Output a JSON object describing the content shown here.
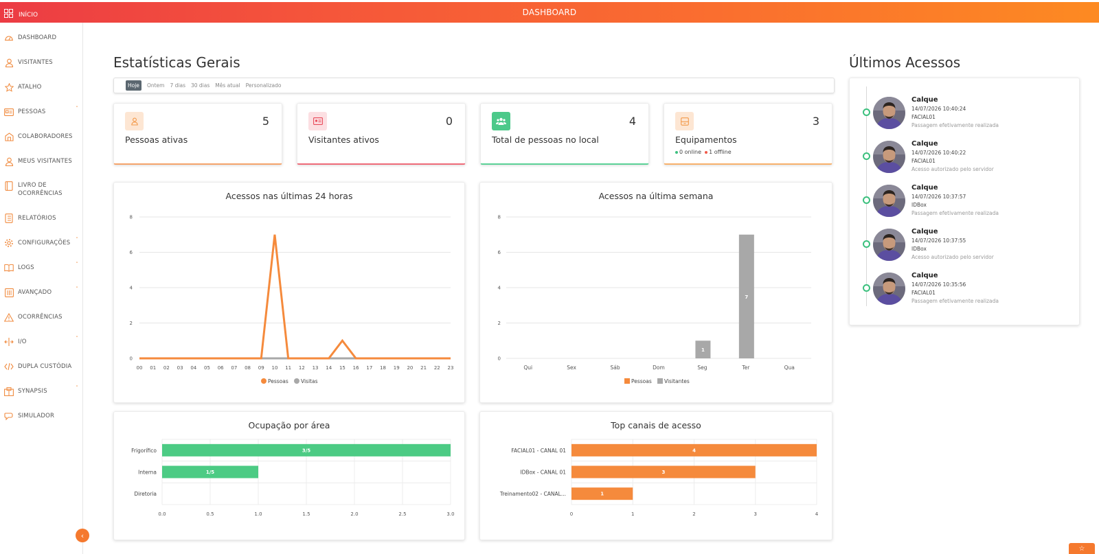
{
  "topbar": {
    "home_label": "INÍCIO",
    "title": "DASHBOARD"
  },
  "sidebar": {
    "items": [
      {
        "label": "DASHBOARD",
        "icon": "cloud-icon",
        "caret": false
      },
      {
        "label": "VISITANTES",
        "icon": "user-icon",
        "caret": false
      },
      {
        "label": "ATALHO",
        "icon": "star-icon",
        "caret": false
      },
      {
        "label": "PESSOAS",
        "icon": "id-card-icon",
        "caret": true
      },
      {
        "label": "COLABORADORES",
        "icon": "building-icon",
        "caret": false
      },
      {
        "label": "MEUS VISITANTES",
        "icon": "user-icon",
        "caret": false
      },
      {
        "label": "LIVRO DE OCORRÊNCIAS",
        "icon": "book-icon",
        "caret": false
      },
      {
        "label": "RELATÓRIOS",
        "icon": "report-icon",
        "caret": false
      },
      {
        "label": "CONFIGURAÇÕES",
        "icon": "gear-icon",
        "caret": true
      },
      {
        "label": "LOGS",
        "icon": "open-book-icon",
        "caret": true
      },
      {
        "label": "AVANÇADO",
        "icon": "advanced-icon",
        "caret": true
      },
      {
        "label": "OCORRÊNCIAS",
        "icon": "warning-icon",
        "caret": false
      },
      {
        "label": "I/O",
        "icon": "io-icon",
        "caret": true
      },
      {
        "label": "DUPLA CUSTÓDIA",
        "icon": "code-icon",
        "caret": false
      },
      {
        "label": "SYNAPSIS",
        "icon": "synapsis-icon",
        "caret": true
      },
      {
        "label": "SIMULADOR",
        "icon": "simulator-icon",
        "caret": false
      }
    ],
    "collapse_label": "‹"
  },
  "main": {
    "title": "Estatísticas Gerais",
    "filters": [
      "Hoje",
      "Ontem",
      "7 dias",
      "30 dias",
      "Mês atual",
      "Personalizado"
    ],
    "active_filter": "Hoje",
    "stats": [
      {
        "label": "Pessoas ativas",
        "value": "5",
        "icon": "person-icon",
        "color": "#f39a4b",
        "bg": "#fde6d3"
      },
      {
        "label": "Visitantes ativos",
        "value": "0",
        "icon": "badge-icon",
        "color": "#e84a5a",
        "bg": "#fcdfe2"
      },
      {
        "label": "Total de pessoas no local",
        "value": "4",
        "icon": "group-icon",
        "color": "#ffffff",
        "bg": "#4cc98a"
      },
      {
        "label": "Equipamentos",
        "value": "3",
        "icon": "device-icon",
        "color": "#f39a4b",
        "bg": "#fde6d3",
        "online": "0 online",
        "offline": "1 offline"
      }
    ]
  },
  "colors": {
    "orange": "#f58a3c",
    "green": "#4ccb84",
    "gray": "#a8a8a8",
    "online": "#3cc07e",
    "offline": "#f05a4a"
  },
  "chart_data": [
    {
      "type": "line",
      "title": "Acessos nas últimas 24 horas",
      "x": [
        "00",
        "01",
        "02",
        "03",
        "04",
        "05",
        "06",
        "07",
        "08",
        "09",
        "10",
        "11",
        "12",
        "13",
        "14",
        "15",
        "16",
        "17",
        "18",
        "19",
        "20",
        "21",
        "22",
        "23"
      ],
      "series": [
        {
          "name": "Pessoas",
          "values": [
            0,
            0,
            0,
            0,
            0,
            0,
            0,
            0,
            0,
            0,
            7,
            0,
            0,
            0,
            0,
            1,
            0,
            0,
            0,
            0,
            0,
            0,
            0,
            0
          ]
        },
        {
          "name": "Visitas",
          "values": [
            0,
            0,
            0,
            0,
            0,
            0,
            0,
            0,
            0,
            0,
            0,
            0,
            0,
            0,
            0,
            0,
            0,
            0,
            0,
            0,
            0,
            0,
            0,
            0
          ]
        }
      ],
      "ylim": [
        0,
        8
      ],
      "yticks": [
        "0",
        "2",
        "4",
        "6",
        "8"
      ],
      "legend": "bottom"
    },
    {
      "type": "bar",
      "title": "Acessos na última semana",
      "categories": [
        "Qui",
        "Sex",
        "Sáb",
        "Dom",
        "Seg",
        "Ter",
        "Qua"
      ],
      "series": [
        {
          "name": "Pessoas",
          "values": [
            0,
            0,
            0,
            0,
            0,
            0,
            0
          ]
        },
        {
          "name": "Visitantes",
          "values": [
            0,
            0,
            0,
            0,
            1,
            7,
            0
          ]
        }
      ],
      "ylim": [
        0,
        8
      ],
      "yticks": [
        "0",
        "2",
        "4",
        "6",
        "8"
      ],
      "legend": "bottom"
    },
    {
      "type": "bar",
      "orientation": "horizontal",
      "title": "Ocupação por área",
      "categories": [
        "Frigorífico",
        "Interna",
        "Diretoria"
      ],
      "values": [
        3,
        1,
        0
      ],
      "labels": [
        "3/5",
        "1/5",
        ""
      ],
      "xlim": [
        0,
        3
      ],
      "xticks": [
        "0.0",
        "0.5",
        "1.0",
        "1.5",
        "2.0",
        "2.5",
        "3.0"
      ]
    },
    {
      "type": "bar",
      "orientation": "horizontal",
      "title": "Top canais de acesso",
      "categories": [
        "FACIAL01 - CANAL 01",
        "IDBox - CANAL 01",
        "Treinamento02 - CANAL..."
      ],
      "values": [
        4,
        3,
        1
      ],
      "labels": [
        "4",
        "3",
        "1"
      ],
      "xlim": [
        0,
        4
      ],
      "xticks": [
        "0",
        "1",
        "2",
        "3",
        "4"
      ]
    }
  ],
  "feed": {
    "title": "Últimos Acessos",
    "entries": [
      {
        "name": "Calque",
        "time": "14/07/2026 10:40:24",
        "device": "FACIAL01",
        "message": "Passagem efetivamente realizada"
      },
      {
        "name": "Calque",
        "time": "14/07/2026 10:40:22",
        "device": "FACIAL01",
        "message": "Acesso autorizado pelo servidor"
      },
      {
        "name": "Calque",
        "time": "14/07/2026 10:37:57",
        "device": "IDBox",
        "message": "Passagem efetivamente realizada"
      },
      {
        "name": "Calque",
        "time": "14/07/2026 10:37:55",
        "device": "IDBox",
        "message": "Acesso autorizado pelo servidor"
      },
      {
        "name": "Calque",
        "time": "14/07/2026 10:35:56",
        "device": "FACIAL01",
        "message": "Passagem efetivamente realizada"
      }
    ]
  },
  "fab_label": "☆"
}
